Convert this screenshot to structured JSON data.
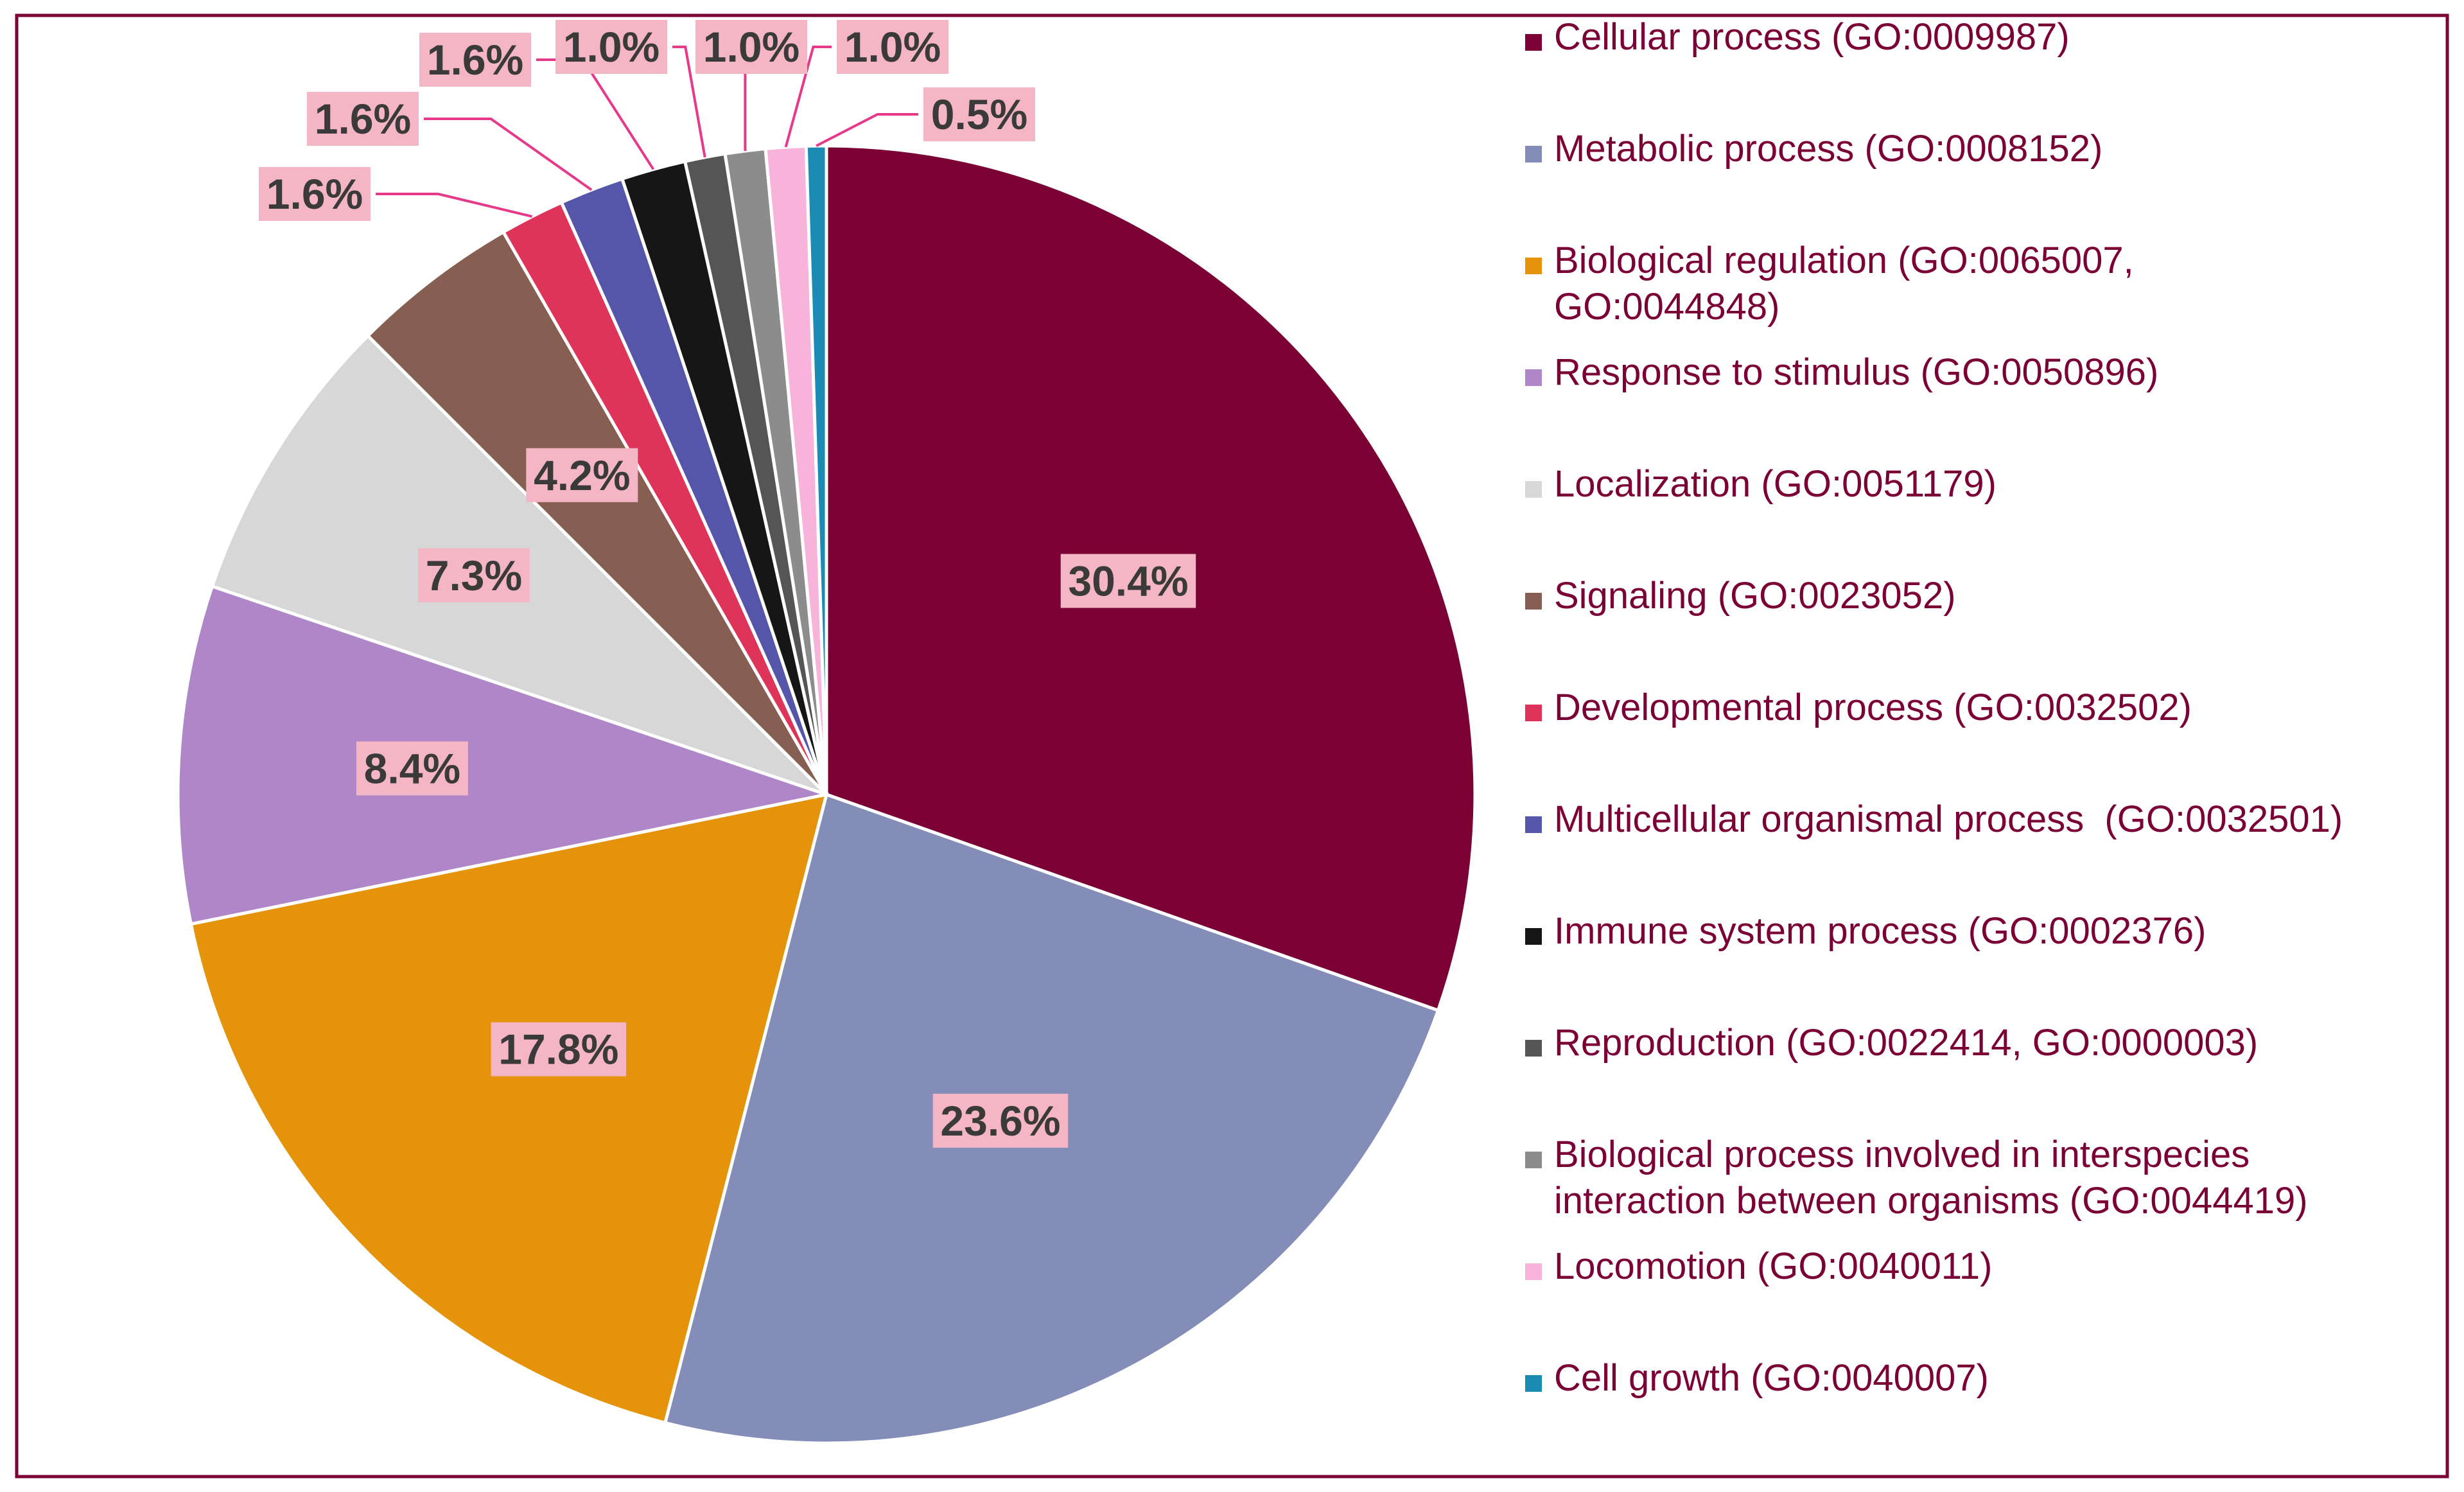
{
  "chart_data": {
    "type": "pie",
    "title": "",
    "slices": [
      {
        "label": "Cellular process (GO:0009987)",
        "value": 30.4,
        "pct": "30.4%",
        "color": "#7a0036"
      },
      {
        "label": "Metabolic process (GO:0008152)",
        "value": 23.6,
        "pct": "23.6%",
        "color": "#848db7"
      },
      {
        "label": "Biological regulation (GO:0065007, GO:0044848)",
        "label_lines": [
          "Biological regulation (GO:0065007,",
          "GO:0044848)"
        ],
        "value": 17.8,
        "pct": "17.8%",
        "color": "#e5930a"
      },
      {
        "label": "Response to stimulus (GO:0050896)",
        "value": 8.4,
        "pct": "8.4%",
        "color": "#af87c8"
      },
      {
        "label": "Localization (GO:0051179)",
        "value": 7.3,
        "pct": "7.3%",
        "color": "#d7d7d7"
      },
      {
        "label": "Signaling (GO:0023052)",
        "value": 4.2,
        "pct": "4.2%",
        "color": "#875f52"
      },
      {
        "label": "Developmental process (GO:0032502)",
        "value": 1.6,
        "pct": "1.6%",
        "color": "#df3459"
      },
      {
        "label": "Multicellular organismal process  (GO:0032501)",
        "value": 1.6,
        "pct": "1.6%",
        "color": "#5555aa"
      },
      {
        "label": "Immune system process (GO:0002376)",
        "value": 1.6,
        "pct": "1.6%",
        "color": "#161616"
      },
      {
        "label": "Reproduction (GO:0022414, GO:0000003)",
        "value": 1.0,
        "pct": "1.0%",
        "color": "#555555"
      },
      {
        "label": "Biological process involved in interspecies interaction between organisms (GO:0044419)",
        "label_lines": [
          "Biological process involved in interspecies",
          "interaction between organisms (GO:0044419)"
        ],
        "value": 1.0,
        "pct": "1.0%",
        "color": "#8c8c8c"
      },
      {
        "label": "Locomotion (GO:0040011)",
        "value": 1.0,
        "pct": "1.0%",
        "color": "#f7b3d9"
      },
      {
        "label": "Cell growth (GO:0040007)",
        "value": 0.5,
        "pct": "0.5%",
        "color": "#1b8bb3"
      }
    ],
    "legend_position": "right",
    "border_color": "#7a0036",
    "label_bg_color": "#f4b6c4",
    "leader_color": "#e6398a"
  }
}
